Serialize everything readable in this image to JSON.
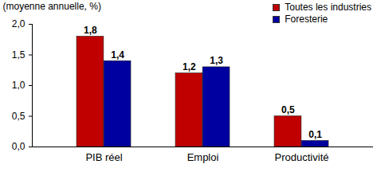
{
  "chart_data": {
    "type": "bar",
    "y_label": "(moyenne annuelle, %)",
    "categories": [
      "PIB réel",
      "Emploi",
      "Productivité"
    ],
    "series": [
      {
        "name": "Toutes les industries",
        "color": "#c00000",
        "values": [
          1.8,
          1.2,
          0.5
        ],
        "value_labels": [
          "1,8",
          "1,2",
          "0,5"
        ]
      },
      {
        "name": "Foresterie",
        "color": "#0000a0",
        "values": [
          1.4,
          1.3,
          0.1
        ],
        "value_labels": [
          "1,4",
          "1,3",
          "0,1"
        ]
      }
    ],
    "ylim": [
      0,
      2
    ],
    "yticks": [
      {
        "value": 0,
        "label": "0,0"
      },
      {
        "value": 0.5,
        "label": "0,5"
      },
      {
        "value": 1,
        "label": "1,0"
      },
      {
        "value": 1.5,
        "label": "1,5"
      },
      {
        "value": 2,
        "label": "2,0"
      }
    ],
    "data_labels": true,
    "legend": "top-right",
    "grid": false
  }
}
